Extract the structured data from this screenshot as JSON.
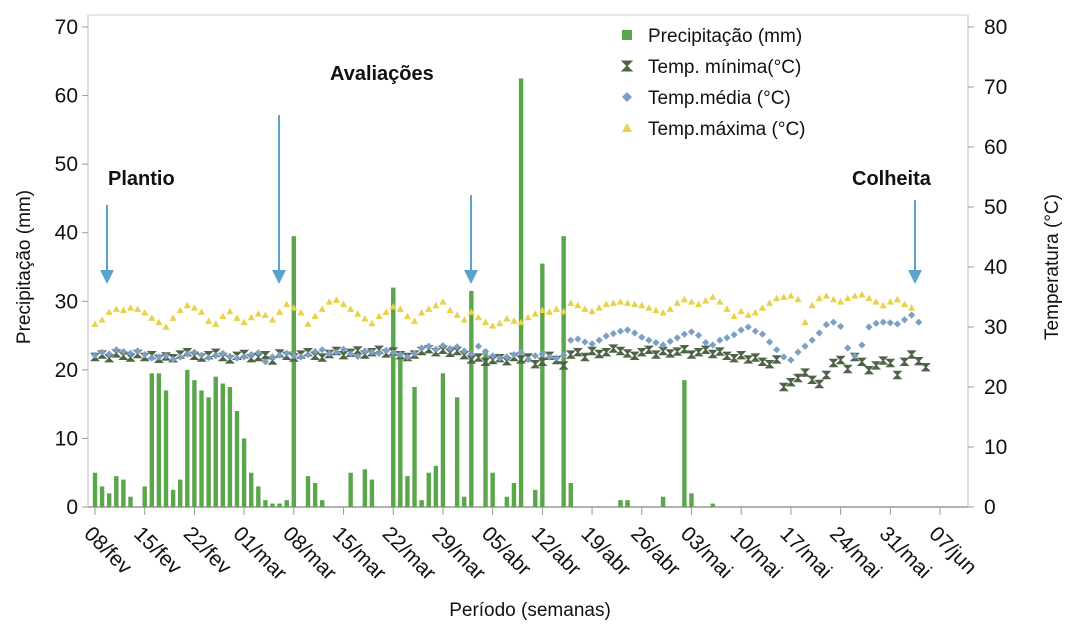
{
  "chart_data": {
    "type": "bar",
    "xlabel": "Período (semanas)",
    "ylabel": "Precipitação (mm)",
    "y2label": "Temperatura (°C)",
    "annotations": [
      "Plantio",
      "Avaliações",
      "Colheita"
    ],
    "categories": [
      "08/fev",
      null,
      null,
      null,
      null,
      null,
      null,
      "15/fev",
      null,
      null,
      null,
      null,
      null,
      null,
      "22/fev",
      null,
      null,
      null,
      null,
      null,
      null,
      "01/mar",
      null,
      null,
      null,
      null,
      null,
      null,
      "08/mar",
      null,
      null,
      null,
      null,
      null,
      null,
      "15/mar",
      null,
      null,
      null,
      null,
      null,
      null,
      "22/mar",
      null,
      null,
      null,
      null,
      null,
      null,
      "29/mar",
      null,
      null,
      null,
      null,
      null,
      null,
      "05/abr",
      null,
      null,
      null,
      null,
      null,
      null,
      "12/abr",
      null,
      null,
      null,
      null,
      null,
      null,
      "19/abr",
      null,
      null,
      null,
      null,
      null,
      null,
      "26/abr",
      null,
      null,
      null,
      null,
      null,
      null,
      "03/mai",
      null,
      null,
      null,
      null,
      null,
      null,
      "10/mai",
      null,
      null,
      null,
      null,
      null,
      null,
      "17/mai",
      null,
      null,
      null,
      null,
      null,
      null,
      "24/mai",
      null,
      null,
      null,
      null,
      null,
      null,
      "31/mai",
      null,
      null,
      null,
      null,
      null,
      null,
      "07/jun"
    ],
    "ylim": [
      0,
      70
    ],
    "yticks": [
      0,
      10,
      20,
      30,
      40,
      50,
      60,
      70
    ],
    "y2lim": [
      0,
      80
    ],
    "y2ticks": [
      0,
      10,
      20,
      30,
      40,
      50,
      60,
      70,
      80
    ],
    "series": [
      {
        "name": "Precipitação (mm)",
        "type": "bar",
        "marker": "square",
        "color": "#5aa64a",
        "values": [
          5,
          3,
          2,
          4.5,
          4,
          1.5,
          0,
          3,
          19.5,
          19.5,
          17,
          2.5,
          4,
          20,
          18.5,
          17,
          16,
          19,
          18,
          17.5,
          14,
          10,
          5,
          3,
          1,
          0.5,
          0.5,
          1,
          39.5,
          0,
          4.5,
          3.5,
          1,
          0,
          0,
          0,
          5,
          0,
          5.5,
          4,
          0,
          0,
          32,
          22.5,
          4.5,
          17.5,
          1,
          5,
          6,
          19.5,
          0,
          16,
          1.5,
          31.5,
          0,
          23,
          5,
          0,
          1.5,
          3.5,
          62.5,
          0,
          2.5,
          35.5,
          0,
          0,
          39.5,
          3.5,
          0,
          0,
          0,
          0,
          0,
          0,
          1,
          1,
          0,
          0,
          0,
          0,
          1.5,
          0,
          0,
          18.5,
          2,
          0,
          0,
          0.5,
          0,
          0,
          0,
          0,
          0,
          0,
          0,
          0,
          0,
          0,
          0,
          0,
          0,
          0,
          0,
          0,
          0,
          0,
          0,
          0,
          0,
          0,
          0,
          0,
          0,
          0,
          0,
          0,
          0,
          0,
          0,
          0
        ]
      },
      {
        "name": "Temp. mínima(°C)",
        "type": "scatter",
        "marker": "star",
        "axis": "y2",
        "color": "#4f6446",
        "values": [
          25.0,
          25.4,
          24.8,
          25.6,
          25.2,
          24.9,
          25.5,
          25.0,
          25.3,
          24.7,
          25.1,
          24.8,
          25.4,
          25.8,
          25.2,
          24.9,
          25.3,
          25.7,
          25.0,
          24.6,
          25.2,
          25.5,
          24.8,
          25.0,
          25.3,
          24.4,
          25.6,
          25.2,
          24.9,
          25.4,
          25.8,
          25.2,
          24.9,
          25.5,
          26.0,
          25.3,
          25.7,
          26.1,
          25.4,
          25.8,
          26.2,
          25.6,
          25.9,
          25.3,
          25.0,
          25.4,
          26.0,
          26.3,
          25.8,
          26.2,
          25.7,
          26.0,
          25.3,
          24.6,
          24.9,
          24.2,
          24.5,
          24.8,
          24.3,
          25.0,
          24.6,
          24.9,
          23.8,
          24.2,
          25.2,
          24.5,
          23.6,
          25.4,
          25.8,
          25.0,
          26.0,
          25.5,
          25.8,
          26.4,
          26.0,
          25.6,
          25.2,
          25.8,
          26.2,
          25.4,
          26.0,
          25.6,
          25.9,
          26.3,
          25.4,
          25.8,
          26.2,
          25.5,
          25.9,
          25.2,
          24.8,
          25.3,
          24.6,
          24.9,
          24.2,
          23.8,
          24.6,
          20.0,
          20.8,
          21.5,
          22.4,
          21.2,
          20.5,
          22.0,
          24.0,
          24.5,
          23.0,
          25.0,
          24.2,
          22.8,
          23.6,
          24.4,
          24.0,
          22.0,
          24.2,
          25.4,
          24.3,
          23.3,
          null,
          null
        ]
      },
      {
        "name": "Temp.média (°C)",
        "type": "scatter",
        "marker": "diamond",
        "axis": "y2",
        "color": "#7b9fc6",
        "values": [
          25.3,
          25.8,
          25.5,
          26.2,
          25.9,
          25.6,
          26.0,
          25.4,
          24.8,
          25.0,
          25.2,
          24.6,
          25.0,
          25.5,
          25.8,
          25.3,
          24.9,
          25.2,
          25.6,
          25.1,
          24.8,
          25.0,
          25.4,
          25.7,
          24.2,
          25.0,
          25.3,
          25.6,
          25.2,
          25.0,
          25.4,
          25.9,
          26.2,
          25.6,
          25.8,
          26.3,
          25.5,
          25.1,
          26.0,
          25.8,
          25.6,
          26.1,
          25.7,
          25.4,
          25.0,
          25.6,
          26.5,
          26.8,
          26.3,
          26.9,
          26.4,
          26.7,
          26.0,
          25.5,
          26.8,
          25.9,
          25.2,
          24.8,
          25.0,
          25.4,
          25.8,
          24.6,
          25.2,
          25.5,
          25.0,
          24.8,
          25.3,
          27.8,
          28.0,
          27.5,
          27.2,
          27.8,
          28.5,
          28.9,
          29.3,
          29.5,
          29.0,
          28.3,
          27.8,
          27.4,
          27.0,
          27.6,
          28.2,
          28.8,
          29.2,
          28.6,
          27.4,
          27.0,
          27.8,
          28.2,
          28.7,
          29.5,
          30.0,
          29.3,
          28.8,
          27.5,
          26.2,
          25.0,
          24.5,
          25.8,
          26.8,
          27.8,
          29.0,
          30.4,
          30.8,
          30.1,
          26.5,
          25.2,
          27.0,
          30.0,
          30.6,
          30.8,
          30.7,
          30.5,
          31.2,
          32.0,
          30.8,
          null,
          null,
          null
        ]
      },
      {
        "name": "Temp.máxima (°C)",
        "type": "scatter",
        "marker": "triangle",
        "axis": "y2",
        "color": "#e8d24a",
        "values": [
          30.5,
          31.2,
          32.5,
          33.0,
          32.8,
          33.2,
          33.0,
          32.4,
          31.5,
          30.8,
          30.0,
          31.5,
          32.8,
          33.6,
          33.2,
          32.5,
          31.0,
          30.5,
          31.8,
          32.6,
          31.5,
          30.8,
          31.6,
          32.2,
          32.0,
          31.2,
          32.5,
          33.8,
          33.2,
          32.4,
          30.5,
          31.8,
          33.0,
          34.2,
          34.5,
          33.8,
          33.0,
          32.2,
          31.4,
          30.6,
          31.8,
          32.5,
          33.4,
          33.0,
          31.8,
          31.0,
          32.4,
          33.0,
          33.6,
          34.2,
          32.8,
          32.0,
          31.2,
          32.5,
          31.6,
          30.8,
          30.2,
          30.6,
          31.4,
          31.0,
          30.8,
          31.6,
          32.2,
          32.8,
          32.5,
          33.0,
          32.6,
          34.0,
          33.6,
          33.0,
          32.6,
          33.2,
          33.8,
          34.0,
          34.2,
          34.0,
          33.8,
          33.6,
          33.2,
          32.8,
          32.4,
          33.0,
          34.0,
          34.6,
          34.2,
          33.8,
          34.4,
          35.0,
          34.2,
          33.0,
          31.8,
          32.6,
          32.0,
          32.4,
          33.2,
          34.0,
          34.8,
          35.0,
          35.2,
          34.6,
          30.8,
          33.6,
          34.8,
          35.2,
          34.6,
          34.2,
          34.8,
          35.2,
          35.4,
          34.8,
          34.2,
          33.6,
          34.2,
          34.6,
          33.8,
          33.2,
          null,
          null,
          null,
          null
        ]
      }
    ]
  }
}
